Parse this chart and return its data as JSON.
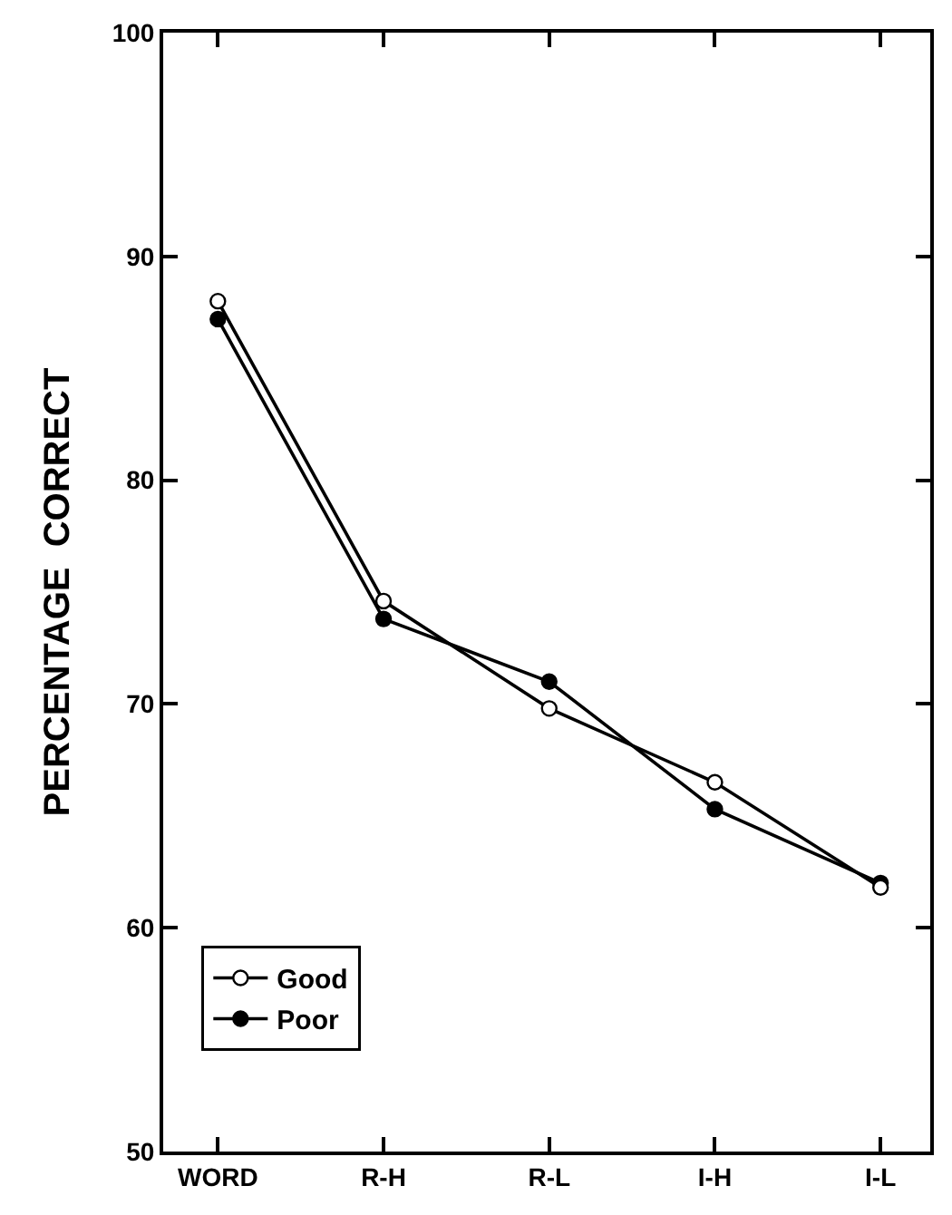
{
  "chart_data": {
    "type": "line",
    "ylabel": "PERCENTAGE  CORRECT",
    "categories": [
      "WORD",
      "R-H",
      "R-L",
      "I-H",
      "I-L"
    ],
    "series": [
      {
        "name": "Good",
        "color": "#000000",
        "values": [
          88.0,
          74.6,
          69.8,
          66.5,
          61.8
        ]
      },
      {
        "name": "Poor",
        "color": "#000000",
        "values": [
          87.2,
          73.8,
          71.0,
          65.3,
          62.0
        ]
      }
    ],
    "ylim": [
      50,
      100
    ],
    "yticks": [
      50,
      60,
      70,
      80,
      90,
      100
    ],
    "legend": "bottom left",
    "marker": "circle",
    "line_style": "solid"
  }
}
